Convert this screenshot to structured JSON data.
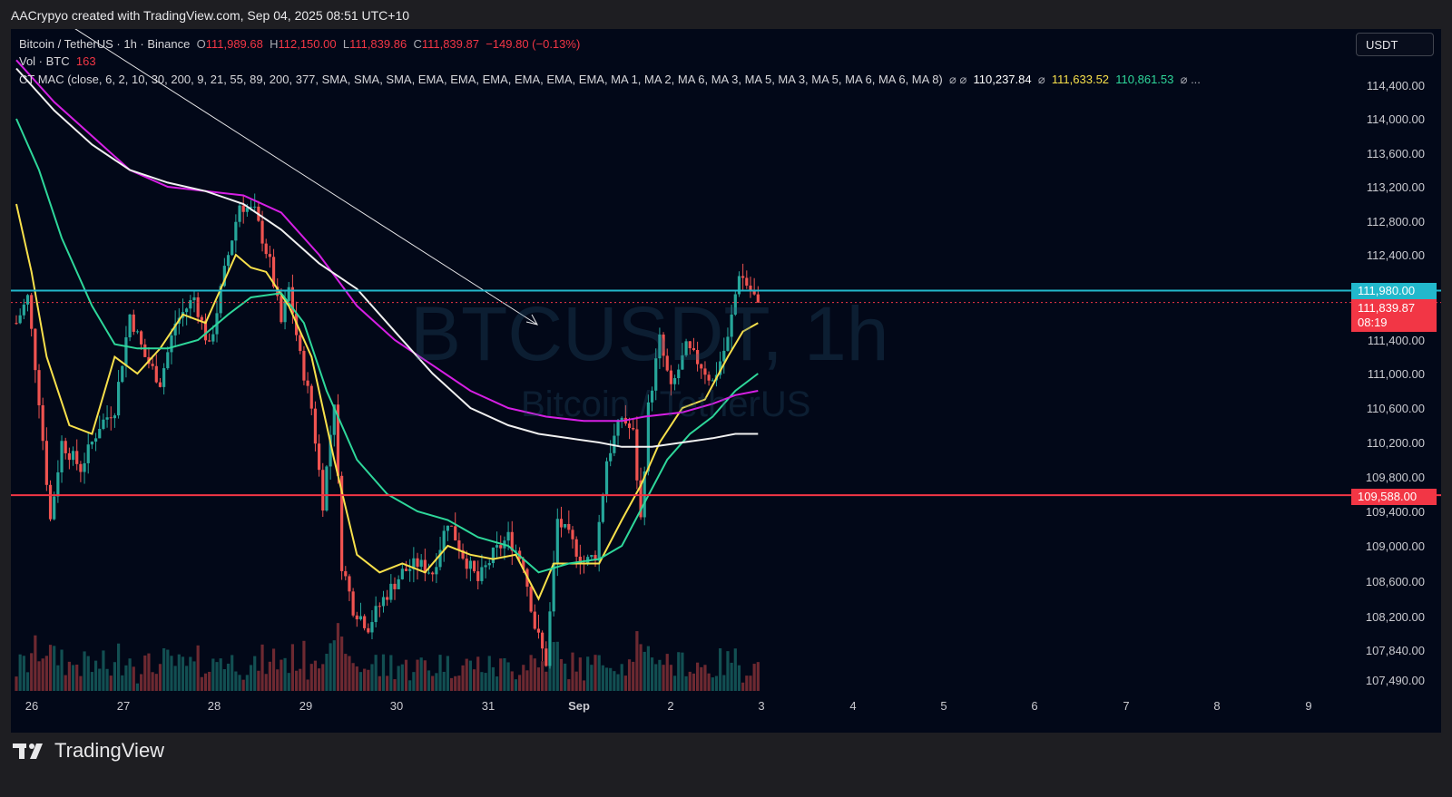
{
  "caption": "AACrypyo created with TradingView.com, Sep 04, 2025 08:51 UTC+10",
  "brand": "TradingView",
  "currency": "USDT",
  "legend": {
    "symbol": "Bitcoin / TetherUS · 1h · Binance",
    "o_label": "O",
    "o": "111,989.68",
    "h_label": "H",
    "h": "112,150.00",
    "l_label": "L",
    "l": "111,839.86",
    "c_label": "C",
    "c": "111,839.87",
    "change": "−149.80 (−0.13%)",
    "vol_label": "Vol · BTC",
    "vol": "163",
    "indicator": "CT MAC (close, 6, 2, 10, 30, 200, 9, 21, 55, 89, 200, 377, SMA, SMA, SMA, EMA, EMA, EMA, EMA, EMA, EMA, MA 1, MA 2, MA 6, MA 3, MA 5, MA 3, MA 5, MA 6, MA 6, MA 8)",
    "ind_sep1": "⌀ ⌀",
    "ind_white": "110,237.84",
    "ind_sep2": "⌀",
    "ind_yellow": "111,633.52",
    "ind_green": "110,861.53",
    "ind_sep3": "⌀ ..."
  },
  "watermark": {
    "main": "BTCUSDT, 1h",
    "sub": "Bitcoin / TetherUS"
  },
  "price_tags": {
    "resistance": "111,980.00",
    "last": "111,839.87",
    "countdown": "08:19",
    "support": "109,588.00"
  },
  "colors": {
    "background": "#020818",
    "up": "#26a69a",
    "down": "#ef5350",
    "ema_yellow": "#f7e04b",
    "ema_green": "#2ed79a",
    "ma_magenta": "#d61fe4",
    "ma_white": "#f0f0f0",
    "level_cyan": "#22b8cc",
    "level_red": "#f23645"
  },
  "chart_data": {
    "type": "candlestick",
    "symbol": "BTCUSDT",
    "interval": "1h",
    "y_ticks": [
      "114,400.00",
      "114,000.00",
      "113,600.00",
      "113,200.00",
      "112,800.00",
      "112,400.00",
      "111,400.00",
      "111,000.00",
      "110,600.00",
      "110,200.00",
      "109,800.00",
      "109,400.00",
      "109,000.00",
      "108,600.00",
      "108,200.00",
      "107,840.00",
      "107,490.00"
    ],
    "ylim": [
      107400,
      114500
    ],
    "x_ticks": [
      "26",
      "27",
      "28",
      "29",
      "30",
      "31",
      "Sep",
      "2",
      "3",
      "4",
      "5",
      "6",
      "7",
      "8",
      "9"
    ],
    "horizontal_levels": [
      111980,
      109588
    ],
    "last_price": 111839.87,
    "close_path": [
      {
        "t": 0,
        "p": 111600
      },
      {
        "t": 3,
        "p": 111900
      },
      {
        "t": 6,
        "p": 110700
      },
      {
        "t": 9,
        "p": 109300
      },
      {
        "t": 12,
        "p": 110200
      },
      {
        "t": 17,
        "p": 109900
      },
      {
        "t": 22,
        "p": 110400
      },
      {
        "t": 26,
        "p": 110600
      },
      {
        "t": 30,
        "p": 111700
      },
      {
        "t": 34,
        "p": 111200
      },
      {
        "t": 38,
        "p": 110900
      },
      {
        "t": 42,
        "p": 111600
      },
      {
        "t": 47,
        "p": 111900
      },
      {
        "t": 51,
        "p": 111300
      },
      {
        "t": 55,
        "p": 112200
      },
      {
        "t": 59,
        "p": 113000
      },
      {
        "t": 63,
        "p": 112900
      },
      {
        "t": 67,
        "p": 112300
      },
      {
        "t": 70,
        "p": 111600
      },
      {
        "t": 72,
        "p": 112000
      },
      {
        "t": 75,
        "p": 111200
      },
      {
        "t": 78,
        "p": 110600
      },
      {
        "t": 81,
        "p": 109500
      },
      {
        "t": 84,
        "p": 110700
      },
      {
        "t": 86,
        "p": 108800
      },
      {
        "t": 89,
        "p": 108300
      },
      {
        "t": 93,
        "p": 108100
      },
      {
        "t": 97,
        "p": 108400
      },
      {
        "t": 102,
        "p": 108700
      },
      {
        "t": 106,
        "p": 108800
      },
      {
        "t": 110,
        "p": 108700
      },
      {
        "t": 114,
        "p": 109300
      },
      {
        "t": 118,
        "p": 108900
      },
      {
        "t": 122,
        "p": 108600
      },
      {
        "t": 126,
        "p": 108900
      },
      {
        "t": 130,
        "p": 109100
      },
      {
        "t": 134,
        "p": 108800
      },
      {
        "t": 137,
        "p": 108100
      },
      {
        "t": 140,
        "p": 107700
      },
      {
        "t": 143,
        "p": 109300
      },
      {
        "t": 146,
        "p": 109100
      },
      {
        "t": 150,
        "p": 108800
      },
      {
        "t": 153,
        "p": 108900
      },
      {
        "t": 156,
        "p": 110000
      },
      {
        "t": 160,
        "p": 110500
      },
      {
        "t": 163,
        "p": 110300
      },
      {
        "t": 165,
        "p": 109300
      },
      {
        "t": 167,
        "p": 110600
      },
      {
        "t": 170,
        "p": 111400
      },
      {
        "t": 173,
        "p": 110800
      },
      {
        "t": 177,
        "p": 111300
      },
      {
        "t": 181,
        "p": 111100
      },
      {
        "t": 184,
        "p": 110900
      },
      {
        "t": 188,
        "p": 111400
      },
      {
        "t": 191,
        "p": 112200
      },
      {
        "t": 194,
        "p": 111980
      },
      {
        "t": 196,
        "p": 111840
      }
    ],
    "ma_lines": [
      {
        "name": "yellow",
        "points": [
          [
            0,
            113000
          ],
          [
            4,
            112200
          ],
          [
            8,
            111200
          ],
          [
            14,
            110400
          ],
          [
            20,
            110300
          ],
          [
            26,
            111200
          ],
          [
            32,
            111000
          ],
          [
            38,
            111300
          ],
          [
            44,
            111700
          ],
          [
            50,
            111600
          ],
          [
            54,
            112000
          ],
          [
            58,
            112400
          ],
          [
            62,
            112250
          ],
          [
            66,
            112200
          ],
          [
            72,
            111800
          ],
          [
            78,
            111200
          ],
          [
            84,
            110000
          ],
          [
            90,
            108900
          ],
          [
            96,
            108700
          ],
          [
            102,
            108800
          ],
          [
            108,
            108700
          ],
          [
            114,
            109000
          ],
          [
            120,
            108900
          ],
          [
            126,
            108850
          ],
          [
            132,
            108900
          ],
          [
            138,
            108400
          ],
          [
            142,
            108800
          ],
          [
            148,
            108800
          ],
          [
            154,
            108800
          ],
          [
            160,
            109300
          ],
          [
            165,
            109700
          ],
          [
            170,
            110200
          ],
          [
            176,
            110600
          ],
          [
            182,
            110700
          ],
          [
            188,
            111200
          ],
          [
            192,
            111500
          ],
          [
            196,
            111600
          ]
        ]
      },
      {
        "name": "green",
        "points": [
          [
            0,
            114000
          ],
          [
            6,
            113400
          ],
          [
            12,
            112600
          ],
          [
            20,
            111800
          ],
          [
            26,
            111350
          ],
          [
            32,
            111300
          ],
          [
            40,
            111300
          ],
          [
            48,
            111400
          ],
          [
            56,
            111700
          ],
          [
            62,
            111900
          ],
          [
            70,
            111950
          ],
          [
            76,
            111600
          ],
          [
            82,
            110800
          ],
          [
            90,
            110000
          ],
          [
            98,
            109600
          ],
          [
            106,
            109400
          ],
          [
            114,
            109300
          ],
          [
            122,
            109100
          ],
          [
            130,
            109000
          ],
          [
            138,
            108700
          ],
          [
            146,
            108800
          ],
          [
            154,
            108850
          ],
          [
            160,
            109000
          ],
          [
            166,
            109500
          ],
          [
            172,
            110000
          ],
          [
            178,
            110300
          ],
          [
            184,
            110500
          ],
          [
            190,
            110800
          ],
          [
            196,
            111000
          ]
        ]
      },
      {
        "name": "magenta",
        "points": [
          [
            0,
            114700
          ],
          [
            10,
            114200
          ],
          [
            20,
            113800
          ],
          [
            30,
            113400
          ],
          [
            40,
            113200
          ],
          [
            50,
            113150
          ],
          [
            60,
            113100
          ],
          [
            70,
            112900
          ],
          [
            80,
            112400
          ],
          [
            90,
            111800
          ],
          [
            100,
            111400
          ],
          [
            110,
            111100
          ],
          [
            120,
            110800
          ],
          [
            130,
            110600
          ],
          [
            140,
            110500
          ],
          [
            150,
            110450
          ],
          [
            160,
            110450
          ],
          [
            166,
            110500
          ],
          [
            176,
            110550
          ],
          [
            184,
            110650
          ],
          [
            190,
            110750
          ],
          [
            196,
            110800
          ]
        ]
      },
      {
        "name": "white",
        "points": [
          [
            0,
            114600
          ],
          [
            10,
            114100
          ],
          [
            20,
            113700
          ],
          [
            30,
            113400
          ],
          [
            40,
            113250
          ],
          [
            50,
            113150
          ],
          [
            60,
            113000
          ],
          [
            70,
            112700
          ],
          [
            80,
            112300
          ],
          [
            90,
            112000
          ],
          [
            100,
            111500
          ],
          [
            110,
            111000
          ],
          [
            120,
            110600
          ],
          [
            130,
            110400
          ],
          [
            138,
            110300
          ],
          [
            146,
            110250
          ],
          [
            154,
            110200
          ],
          [
            160,
            110150
          ],
          [
            168,
            110150
          ],
          [
            176,
            110200
          ],
          [
            184,
            110250
          ],
          [
            190,
            110300
          ],
          [
            196,
            110300
          ]
        ]
      }
    ]
  }
}
